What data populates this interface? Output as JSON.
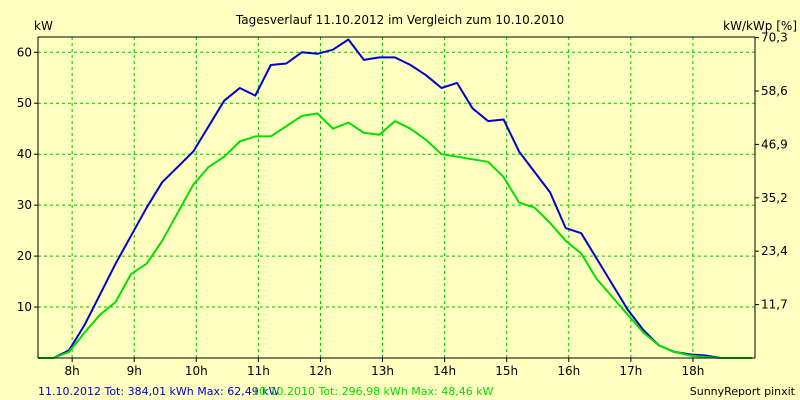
{
  "chart_data": {
    "type": "line",
    "title": "Tagesverlauf 11.10.2012 im Vergleich zum 10.10.2010",
    "ylabel_left": "kW",
    "ylabel_right": "kW/kWp [%]",
    "x_unit": "hour",
    "xlim": [
      7.45,
      19.0
    ],
    "ylim": [
      0,
      63
    ],
    "x_ticks": [
      8,
      9,
      10,
      11,
      12,
      13,
      14,
      15,
      16,
      17,
      18
    ],
    "x_tick_labels": [
      "8h",
      "9h",
      "10h",
      "11h",
      "12h",
      "13h",
      "14h",
      "15h",
      "16h",
      "17h",
      "18h"
    ],
    "y_ticks_left": [
      10,
      20,
      30,
      40,
      50,
      60
    ],
    "y_tick_labels_left": [
      "10",
      "20",
      "30",
      "40",
      "50",
      "60"
    ],
    "y_ticks_right_at": [
      10.48,
      20.96,
      31.44,
      41.92,
      52.4,
      62.88
    ],
    "y_tick_labels_right": [
      "11,7",
      "23,4",
      "35,2",
      "46,9",
      "58,6",
      "70,3"
    ],
    "grid": true,
    "colors": {
      "background": "#ffffc0",
      "grid": "#00c000",
      "axes": "#000000",
      "series_2012": "#0000d0",
      "series_2010": "#00e000"
    },
    "x": [
      7.45,
      7.7,
      7.95,
      8.2,
      8.45,
      8.7,
      8.95,
      9.2,
      9.45,
      9.7,
      9.95,
      10.2,
      10.45,
      10.7,
      10.95,
      11.2,
      11.45,
      11.7,
      11.95,
      12.2,
      12.45,
      12.7,
      12.95,
      13.2,
      13.45,
      13.7,
      13.95,
      14.2,
      14.45,
      14.7,
      14.95,
      15.2,
      15.45,
      15.7,
      15.95,
      16.2,
      16.45,
      16.7,
      16.95,
      17.2,
      17.45,
      17.7,
      17.95,
      18.2,
      18.45,
      18.7,
      18.95
    ],
    "series": [
      {
        "name": "11.10.2012",
        "color": "#0000d0",
        "values": [
          0,
          0,
          1.5,
          6.5,
          12.5,
          18.5,
          24,
          29.5,
          34.5,
          37.5,
          40.5,
          45.5,
          50.5,
          53,
          51.5,
          57.5,
          57.8,
          60,
          59.7,
          60.5,
          62.5,
          58.5,
          59,
          59,
          57.5,
          55.5,
          53,
          54,
          49,
          46.5,
          46.8,
          40.5,
          36.5,
          32.5,
          25.5,
          24.5,
          19.5,
          14.5,
          9.5,
          5.5,
          2.5,
          1.2,
          0.7,
          0.5,
          0,
          0,
          0
        ]
      },
      {
        "name": "10.10.2010",
        "color": "#00e000",
        "values": [
          0,
          0,
          1.2,
          5,
          8.5,
          11,
          16.5,
          18.5,
          23,
          28.5,
          34,
          37.5,
          39.5,
          42.5,
          43.5,
          43.5,
          45.5,
          47.5,
          48,
          45,
          46.2,
          44.2,
          43.8,
          46.5,
          45,
          42.8,
          40,
          39.5,
          39,
          38.5,
          35.5,
          30.5,
          29.5,
          26.5,
          23,
          20.5,
          15.5,
          12,
          8.5,
          5,
          2.5,
          1.2,
          0.5,
          0.2,
          0,
          0,
          0
        ]
      }
    ]
  },
  "footer": {
    "series_2012_text": "11.10.2012 Tot: 384,01 kWh Max: 62,49 kW",
    "series_2010_text": "10.10.2010 Tot: 296,98 kWh Max: 48,46 kW",
    "credit": "SunnyReport pinxit"
  }
}
